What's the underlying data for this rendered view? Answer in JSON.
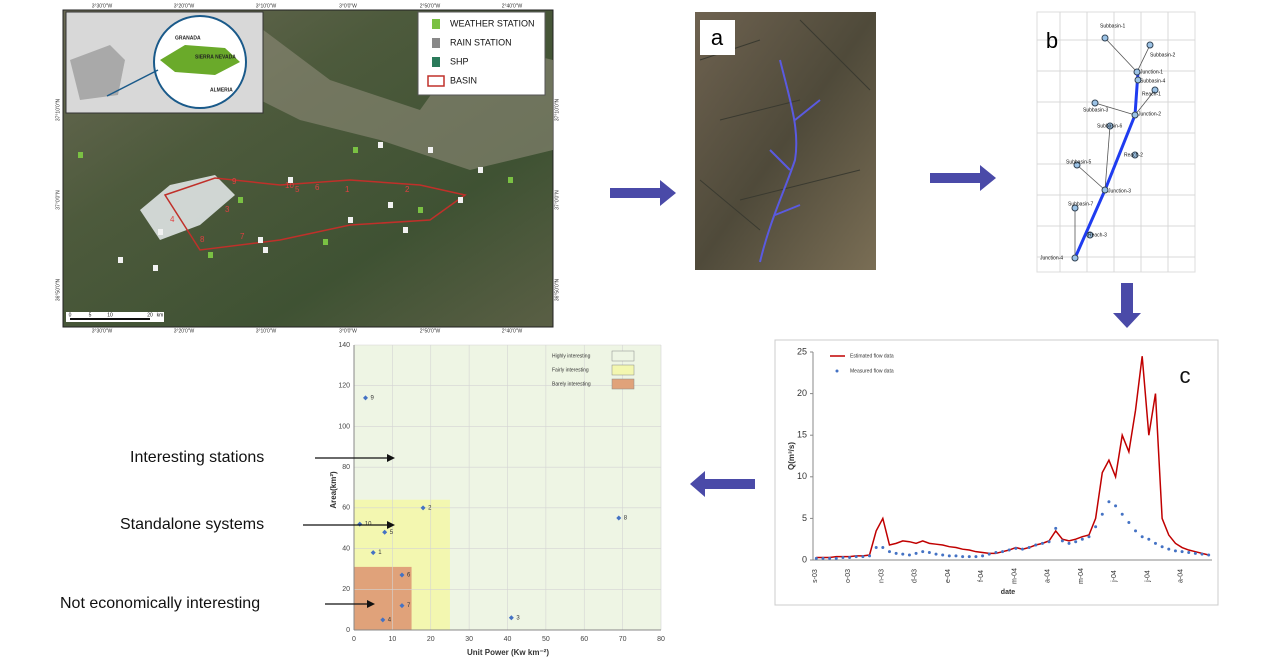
{
  "map": {
    "legend": [
      "WEATHER STATION",
      "RAIN STATION",
      "SHP",
      "BASIN"
    ],
    "inset_labels": [
      "GRANADA",
      "SIERRA NEVADA",
      "ALMERIA"
    ],
    "lon_labels": [
      "3°30'0\"W",
      "3°20'0\"W",
      "3°10'0\"W",
      "3°0'0\"W",
      "2°50'0\"W",
      "2°40'0\"W"
    ],
    "lat_labels": [
      "37°10'0\"N",
      "37°0'0\"N",
      "36°50'0\"N"
    ],
    "scale_labels": [
      "0",
      "5",
      "10",
      "20",
      "km"
    ],
    "basin_numbers": [
      "1",
      "2",
      "3",
      "4",
      "5",
      "6",
      "7",
      "8",
      "9",
      "10"
    ]
  },
  "panel_a": {
    "letter": "a"
  },
  "panel_b": {
    "letter": "b",
    "nodes": [
      "Subbasin-1",
      "Subbasin-2",
      "Junction-1",
      "Subbasin-4",
      "Reach-1",
      "Subbasin-3",
      "Junction-2",
      "Subbasin-6",
      "Reach-2",
      "Subbasin-5",
      "Junction-3",
      "Subbasin-7",
      "Reach-3",
      "Junction-4"
    ]
  },
  "flow_chart": {
    "type": "line",
    "letter": "c",
    "y_label": "Q(m³/s)",
    "x_label": "date",
    "x_labels": [
      "s-03",
      "o-03",
      "n-03",
      "d-03",
      "e-04",
      "f-04",
      "m-04",
      "a-04",
      "m-04",
      "j-04",
      "j-04",
      "a-04"
    ],
    "ylim": [
      0,
      25
    ],
    "yticks": [
      0,
      5,
      10,
      15,
      20,
      25
    ],
    "series": [
      {
        "name": "Estimated flow data",
        "color": "#c00000",
        "style": "line",
        "values": [
          0.3,
          0.3,
          0.3,
          0.4,
          0.4,
          0.4,
          0.5,
          0.5,
          0.6,
          3.5,
          5.0,
          1.8,
          2.0,
          2.3,
          2.2,
          2.0,
          2.3,
          2.0,
          1.9,
          1.8,
          1.6,
          1.5,
          1.3,
          1.2,
          1.0,
          0.9,
          0.8,
          0.8,
          1.0,
          1.2,
          1.5,
          1.3,
          1.5,
          1.8,
          2.0,
          2.3,
          3.5,
          2.5,
          2.3,
          2.5,
          2.8,
          3.0,
          5.0,
          10.5,
          12.0,
          10.0,
          15.0,
          13.0,
          18.0,
          24.5,
          15.0,
          20.0,
          5.0,
          3.0,
          2.0,
          1.5,
          1.2,
          1.0,
          0.8,
          0.6
        ]
      },
      {
        "name": "Measured flow data",
        "color": "#4472c4",
        "style": "dots",
        "values": [
          0.2,
          0.2,
          0.2,
          0.2,
          0.3,
          0.3,
          0.4,
          0.4,
          0.5,
          1.5,
          1.5,
          1.0,
          0.8,
          0.7,
          0.6,
          0.8,
          1.0,
          0.9,
          0.7,
          0.6,
          0.5,
          0.5,
          0.4,
          0.4,
          0.4,
          0.5,
          0.7,
          0.9,
          1.0,
          1.2,
          1.4,
          1.3,
          1.5,
          1.8,
          2.0,
          2.2,
          3.8,
          2.3,
          2.0,
          2.2,
          2.5,
          2.8,
          4.0,
          5.5,
          7.0,
          6.5,
          5.5,
          4.5,
          3.5,
          2.8,
          2.5,
          2.0,
          1.6,
          1.3,
          1.1,
          1.0,
          0.9,
          0.8,
          0.7,
          0.6
        ]
      }
    ]
  },
  "scatter_chart": {
    "type": "scatter",
    "x_label": "Unit Power (Kw km⁻²)",
    "y_label": "Area(km²)",
    "xlim": [
      0,
      80
    ],
    "xticks": [
      0,
      10,
      20,
      30,
      40,
      50,
      60,
      70,
      80
    ],
    "ylim": [
      0,
      140
    ],
    "yticks": [
      0,
      20,
      40,
      60,
      80,
      100,
      120,
      140
    ],
    "color": "#4472c4",
    "points": [
      {
        "label": "9",
        "x": 3,
        "y": 114
      },
      {
        "label": "2",
        "x": 18,
        "y": 60
      },
      {
        "label": "8",
        "x": 69,
        "y": 55
      },
      {
        "label": "10",
        "x": 1.5,
        "y": 52
      },
      {
        "label": "5",
        "x": 8,
        "y": 48
      },
      {
        "label": "1",
        "x": 5,
        "y": 38
      },
      {
        "label": "6",
        "x": 12.5,
        "y": 27
      },
      {
        "label": "7",
        "x": 12.5,
        "y": 12
      },
      {
        "label": "4",
        "x": 7.5,
        "y": 5
      },
      {
        "label": "3",
        "x": 41,
        "y": 6
      }
    ],
    "legend": [
      {
        "name": "Highly interesting",
        "color": "#eef5e4"
      },
      {
        "name": "Fairly interesting",
        "color": "#f3f7b0"
      },
      {
        "name": "Barely interesting",
        "color": "#e0a27a"
      }
    ],
    "regions": [
      {
        "x": 25,
        "y": 64
      },
      {
        "x": 15,
        "y": 31
      }
    ],
    "annotations": [
      "Interesting stations",
      "Standalone systems",
      "Not economically interesting"
    ]
  }
}
